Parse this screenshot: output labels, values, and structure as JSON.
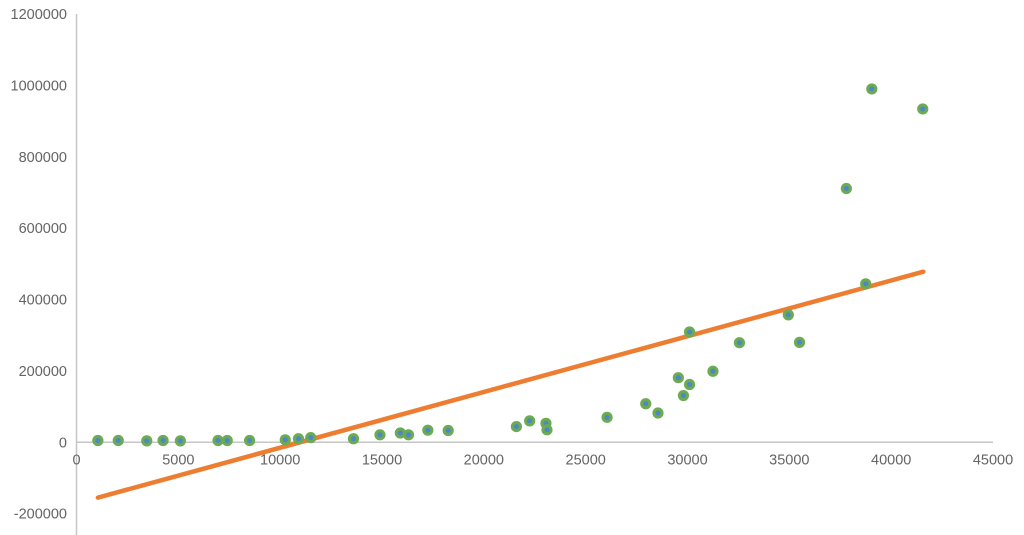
{
  "chart_data": {
    "type": "scatter",
    "title": "",
    "xlabel": "",
    "ylabel": "",
    "xlim": [
      0,
      45000
    ],
    "ylim": [
      -200000,
      1200000
    ],
    "xticks": [
      0,
      5000,
      10000,
      15000,
      20000,
      25000,
      30000,
      35000,
      40000,
      45000
    ],
    "yticks": [
      -200000,
      0,
      200000,
      400000,
      600000,
      800000,
      1000000,
      1200000
    ],
    "grid": false,
    "legend": null,
    "axis_color": "#c6c6c6",
    "tick_label_color": "#646464",
    "background_color": "#ffffff",
    "series": [
      {
        "name": "data-points",
        "type": "scatter",
        "marker": "circle",
        "marker_color": "#6bab51",
        "marker_inner_color": "#4e86c6",
        "points": [
          [
            1050,
            5000
          ],
          [
            2050,
            5000
          ],
          [
            3450,
            4000
          ],
          [
            4250,
            5000
          ],
          [
            5100,
            4000
          ],
          [
            6950,
            5000
          ],
          [
            7400,
            5000
          ],
          [
            8500,
            5000
          ],
          [
            10250,
            7000
          ],
          [
            10900,
            10000
          ],
          [
            11500,
            13000
          ],
          [
            13600,
            10000
          ],
          [
            14900,
            21000
          ],
          [
            15900,
            26000
          ],
          [
            16300,
            21000
          ],
          [
            17250,
            34000
          ],
          [
            18250,
            33000
          ],
          [
            21600,
            44000
          ],
          [
            22250,
            60000
          ],
          [
            23050,
            53000
          ],
          [
            23100,
            35000
          ],
          [
            26050,
            70000
          ],
          [
            27950,
            108000
          ],
          [
            28550,
            82000
          ],
          [
            29550,
            181000
          ],
          [
            29800,
            131000
          ],
          [
            30100,
            162000
          ],
          [
            30100,
            309000
          ],
          [
            31250,
            199000
          ],
          [
            32550,
            279000
          ],
          [
            34950,
            357000
          ],
          [
            35500,
            280000
          ],
          [
            37800,
            711000
          ],
          [
            38750,
            444000
          ],
          [
            39050,
            990000
          ],
          [
            41550,
            934000
          ]
        ]
      },
      {
        "name": "trendline",
        "type": "line",
        "color": "#ed7d31",
        "points": [
          [
            1050,
            -155000
          ],
          [
            41580,
            478000
          ]
        ]
      }
    ]
  }
}
